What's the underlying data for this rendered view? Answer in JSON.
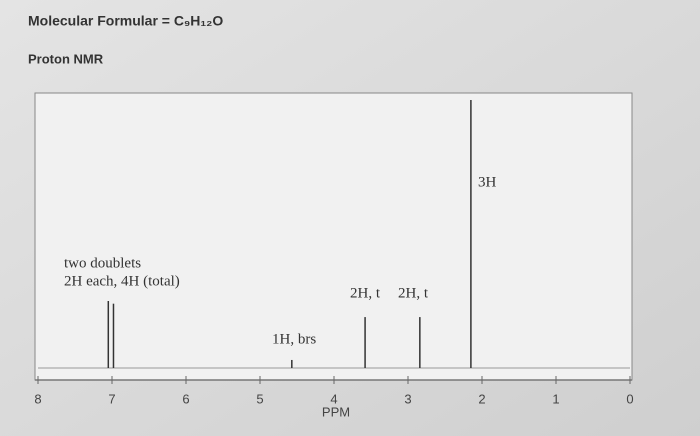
{
  "chart_data": {
    "type": "stem",
    "title": "Molecular Formular = C₉H₁₂O",
    "subtitle": "Proton NMR",
    "x_label": "PPM",
    "x": [
      7.05,
      6.98,
      4.57,
      3.58,
      2.84,
      2.15
    ],
    "values": [
      25,
      24,
      3,
      19,
      19,
      100
    ],
    "color": "#333333",
    "xlim": [
      8,
      0
    ],
    "ylim": [
      0,
      100
    ],
    "xticks": [
      8,
      7,
      6,
      5,
      4,
      3,
      2,
      1,
      0
    ],
    "annotations": [
      "two doublets",
      "2H each, 4H (total)",
      "1H, brs",
      "2H, t",
      "2H, t",
      "3H"
    ]
  }
}
